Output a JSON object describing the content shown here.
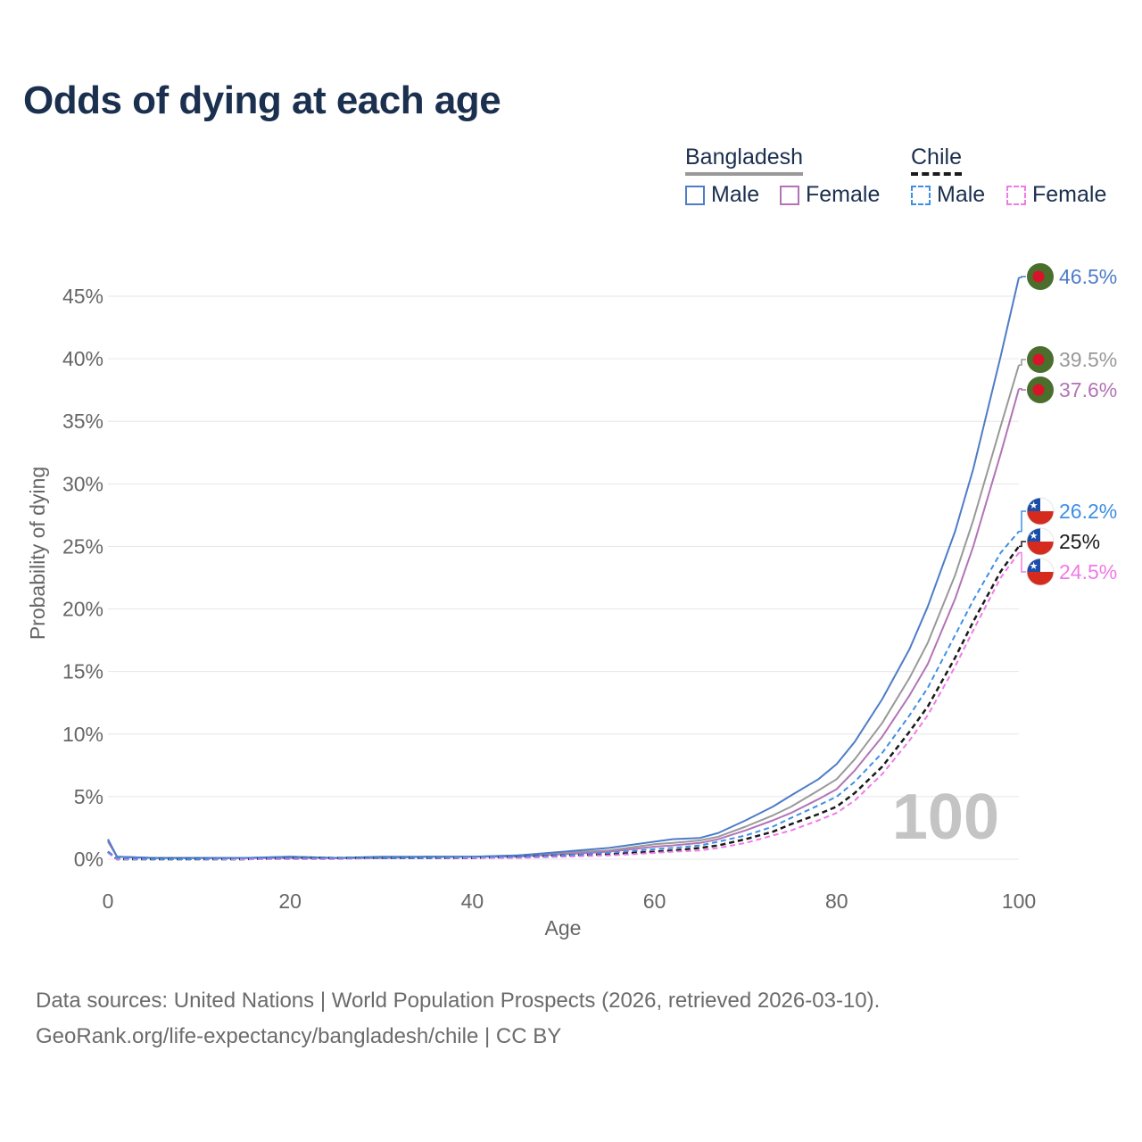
{
  "title": "Odds of dying at each age",
  "legend": {
    "groups": [
      {
        "country": "Bangladesh",
        "male_label": "Male",
        "female_label": "Female"
      },
      {
        "country": "Chile",
        "male_label": "Male",
        "female_label": "Female"
      }
    ]
  },
  "colors": {
    "bangladesh_male": "#4e7cc8",
    "bangladesh_female": "#b274b6",
    "bangladesh_total": "#999999",
    "chile_male": "#3d8fe6",
    "chile_female": "#f07ae8",
    "chile_total": "#1a1a1a",
    "bangladesh_flag_green": "#4b6e2d",
    "bangladesh_flag_red": "#d9132a",
    "chile_flag_blue": "#1b4ea8",
    "chile_flag_red": "#d52b1e",
    "title": "#1b2f4e",
    "axis_text": "#666666"
  },
  "watermark_age": "100",
  "end_labels": [
    {
      "text": "46.5%",
      "series": "Bangladesh Male",
      "country": "Bangladesh",
      "color": "#4e7cc8"
    },
    {
      "text": "39.5%",
      "series": "Bangladesh",
      "country": "Bangladesh",
      "color": "#999999"
    },
    {
      "text": "37.6%",
      "series": "Bangladesh Female",
      "country": "Bangladesh",
      "color": "#b274b6"
    },
    {
      "text": "26.2%",
      "series": "Chile Male",
      "country": "Chile",
      "color": "#3d8fe6"
    },
    {
      "text": "25%",
      "series": "Chile",
      "country": "Chile",
      "color": "#1a1a1a"
    },
    {
      "text": "24.5%",
      "series": "Chile Female",
      "country": "Chile",
      "color": "#f07ae8"
    }
  ],
  "footer": {
    "line1": "Data sources: United Nations | World Population Prospects (2026, retrieved 2026-03-10).",
    "line2": "GeoRank.org/life-expectancy/bangladesh/chile | CC BY"
  },
  "chart_data": {
    "type": "line",
    "title": "Odds of dying at each age",
    "xlabel": "Age",
    "ylabel": "Probability of dying",
    "xlim": [
      0,
      100
    ],
    "ylim": [
      0,
      45
    ],
    "x_ticks": [
      0,
      20,
      40,
      60,
      80,
      100
    ],
    "y_ticks": [
      0,
      5,
      10,
      15,
      20,
      25,
      30,
      35,
      40,
      45
    ],
    "y_tick_suffix": "%",
    "grid": true,
    "x": [
      0,
      1,
      5,
      10,
      15,
      20,
      25,
      30,
      35,
      40,
      45,
      50,
      55,
      60,
      62,
      65,
      67,
      70,
      73,
      75,
      78,
      80,
      82,
      85,
      88,
      90,
      93,
      95,
      98,
      100
    ],
    "series": [
      {
        "name": "Bangladesh Male",
        "country": "Bangladesh",
        "sex": "male",
        "style": "solid",
        "values": [
          1.6,
          0.2,
          0.1,
          0.1,
          0.1,
          0.2,
          0.1,
          0.2,
          0.2,
          0.2,
          0.3,
          0.6,
          0.9,
          1.4,
          1.6,
          1.7,
          2.1,
          3.1,
          4.2,
          5.1,
          6.4,
          7.6,
          9.4,
          12.8,
          16.8,
          20.2,
          26.2,
          31.2,
          40.2,
          46.5
        ]
      },
      {
        "name": "Bangladesh",
        "country": "Bangladesh",
        "sex": "total",
        "style": "solid",
        "values": [
          1.5,
          0.2,
          0.1,
          0.1,
          0.1,
          0.2,
          0.1,
          0.1,
          0.2,
          0.2,
          0.3,
          0.5,
          0.7,
          1.2,
          1.3,
          1.5,
          1.8,
          2.6,
          3.5,
          4.2,
          5.5,
          6.4,
          8.0,
          10.9,
          14.5,
          17.3,
          22.7,
          27.1,
          34.6,
          39.5
        ]
      },
      {
        "name": "Bangladesh Female",
        "country": "Bangladesh",
        "sex": "female",
        "style": "solid",
        "values": [
          1.4,
          0.2,
          0.1,
          0.1,
          0.1,
          0.1,
          0.1,
          0.1,
          0.2,
          0.2,
          0.2,
          0.4,
          0.6,
          1.0,
          1.1,
          1.3,
          1.6,
          2.3,
          3.1,
          3.7,
          4.8,
          5.6,
          7.1,
          9.8,
          13.1,
          15.6,
          20.8,
          25.0,
          32.4,
          37.6
        ]
      },
      {
        "name": "Chile Male",
        "country": "Chile",
        "sex": "male",
        "style": "dashed",
        "values": [
          0.6,
          0.1,
          0.0,
          0.0,
          0.1,
          0.1,
          0.1,
          0.1,
          0.1,
          0.2,
          0.2,
          0.3,
          0.5,
          0.8,
          0.9,
          1.1,
          1.4,
          1.9,
          2.6,
          3.3,
          4.3,
          5.0,
          6.2,
          8.5,
          11.5,
          13.7,
          17.9,
          20.7,
          24.5,
          26.2
        ]
      },
      {
        "name": "Chile",
        "country": "Chile",
        "sex": "total",
        "style": "dashed",
        "values": [
          0.6,
          0.0,
          0.0,
          0.0,
          0.0,
          0.1,
          0.1,
          0.1,
          0.1,
          0.1,
          0.2,
          0.3,
          0.4,
          0.6,
          0.7,
          0.9,
          1.1,
          1.6,
          2.2,
          2.8,
          3.6,
          4.2,
          5.3,
          7.4,
          10.2,
          12.2,
          16.1,
          19.0,
          23.0,
          25.0
        ]
      },
      {
        "name": "Chile Female",
        "country": "Chile",
        "sex": "female",
        "style": "dashed",
        "values": [
          0.5,
          0.0,
          0.0,
          0.0,
          0.0,
          0.0,
          0.0,
          0.1,
          0.1,
          0.1,
          0.1,
          0.2,
          0.3,
          0.5,
          0.6,
          0.7,
          0.9,
          1.3,
          1.9,
          2.3,
          3.1,
          3.7,
          4.7,
          6.8,
          9.5,
          11.5,
          15.4,
          18.3,
          22.5,
          24.5
        ]
      }
    ]
  }
}
